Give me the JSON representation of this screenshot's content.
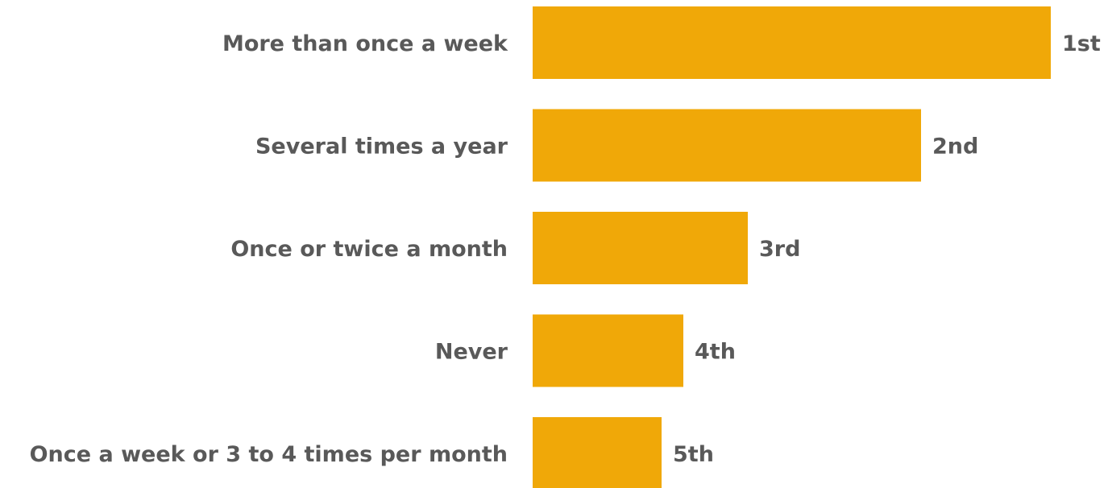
{
  "chart_data": {
    "type": "bar",
    "orientation": "horizontal",
    "categories": [
      "More than once a week",
      "Several times a year",
      "Once or twice a month",
      "Never",
      "Once a week or 3 to 4 times per month"
    ],
    "values": [
      5,
      4,
      3,
      2,
      1
    ],
    "data_labels": [
      "1st",
      "2nd",
      "3rd",
      "4th",
      "5th"
    ],
    "bar_fraction": [
      1.0,
      0.75,
      0.416,
      0.291,
      0.249
    ],
    "title": "",
    "xlabel": "",
    "ylabel": "",
    "grid": false,
    "legend": "none",
    "colors": {
      "bar": "#F0A808",
      "text": "#595959",
      "background": "#FFFFFF"
    }
  }
}
